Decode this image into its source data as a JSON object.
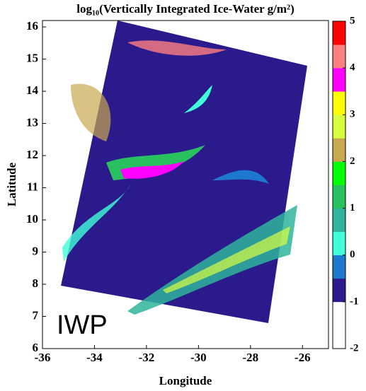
{
  "chart_data": {
    "type": "heatmap",
    "title": "log₁₀(Vertically Integrated Ice-Water g/m²)",
    "xlabel": "Longitude",
    "ylabel": "Latitude",
    "xlim": [
      -36,
      -25
    ],
    "xticks": [
      -36,
      -34,
      -32,
      -30,
      -28,
      -26
    ],
    "ylim": [
      6,
      16.2
    ],
    "yticks": [
      6,
      7,
      8,
      9,
      10,
      11,
      12,
      13,
      14,
      15,
      16
    ],
    "colorbar": {
      "lim": [
        -2,
        5
      ],
      "ticks": [
        -2,
        -1,
        0,
        1,
        2,
        3,
        4,
        5
      ],
      "colors": [
        "#ffffff",
        "#ffffff",
        "#2b1a8c",
        "#1f78d0",
        "#40ffd8",
        "#2fb49a",
        "#29c060",
        "#00ff00",
        "#c8a850",
        "#d8ff40",
        "#ffff00",
        "#ff00ff",
        "#ff8080",
        "#ff0000"
      ]
    },
    "annotation": "IWP"
  }
}
